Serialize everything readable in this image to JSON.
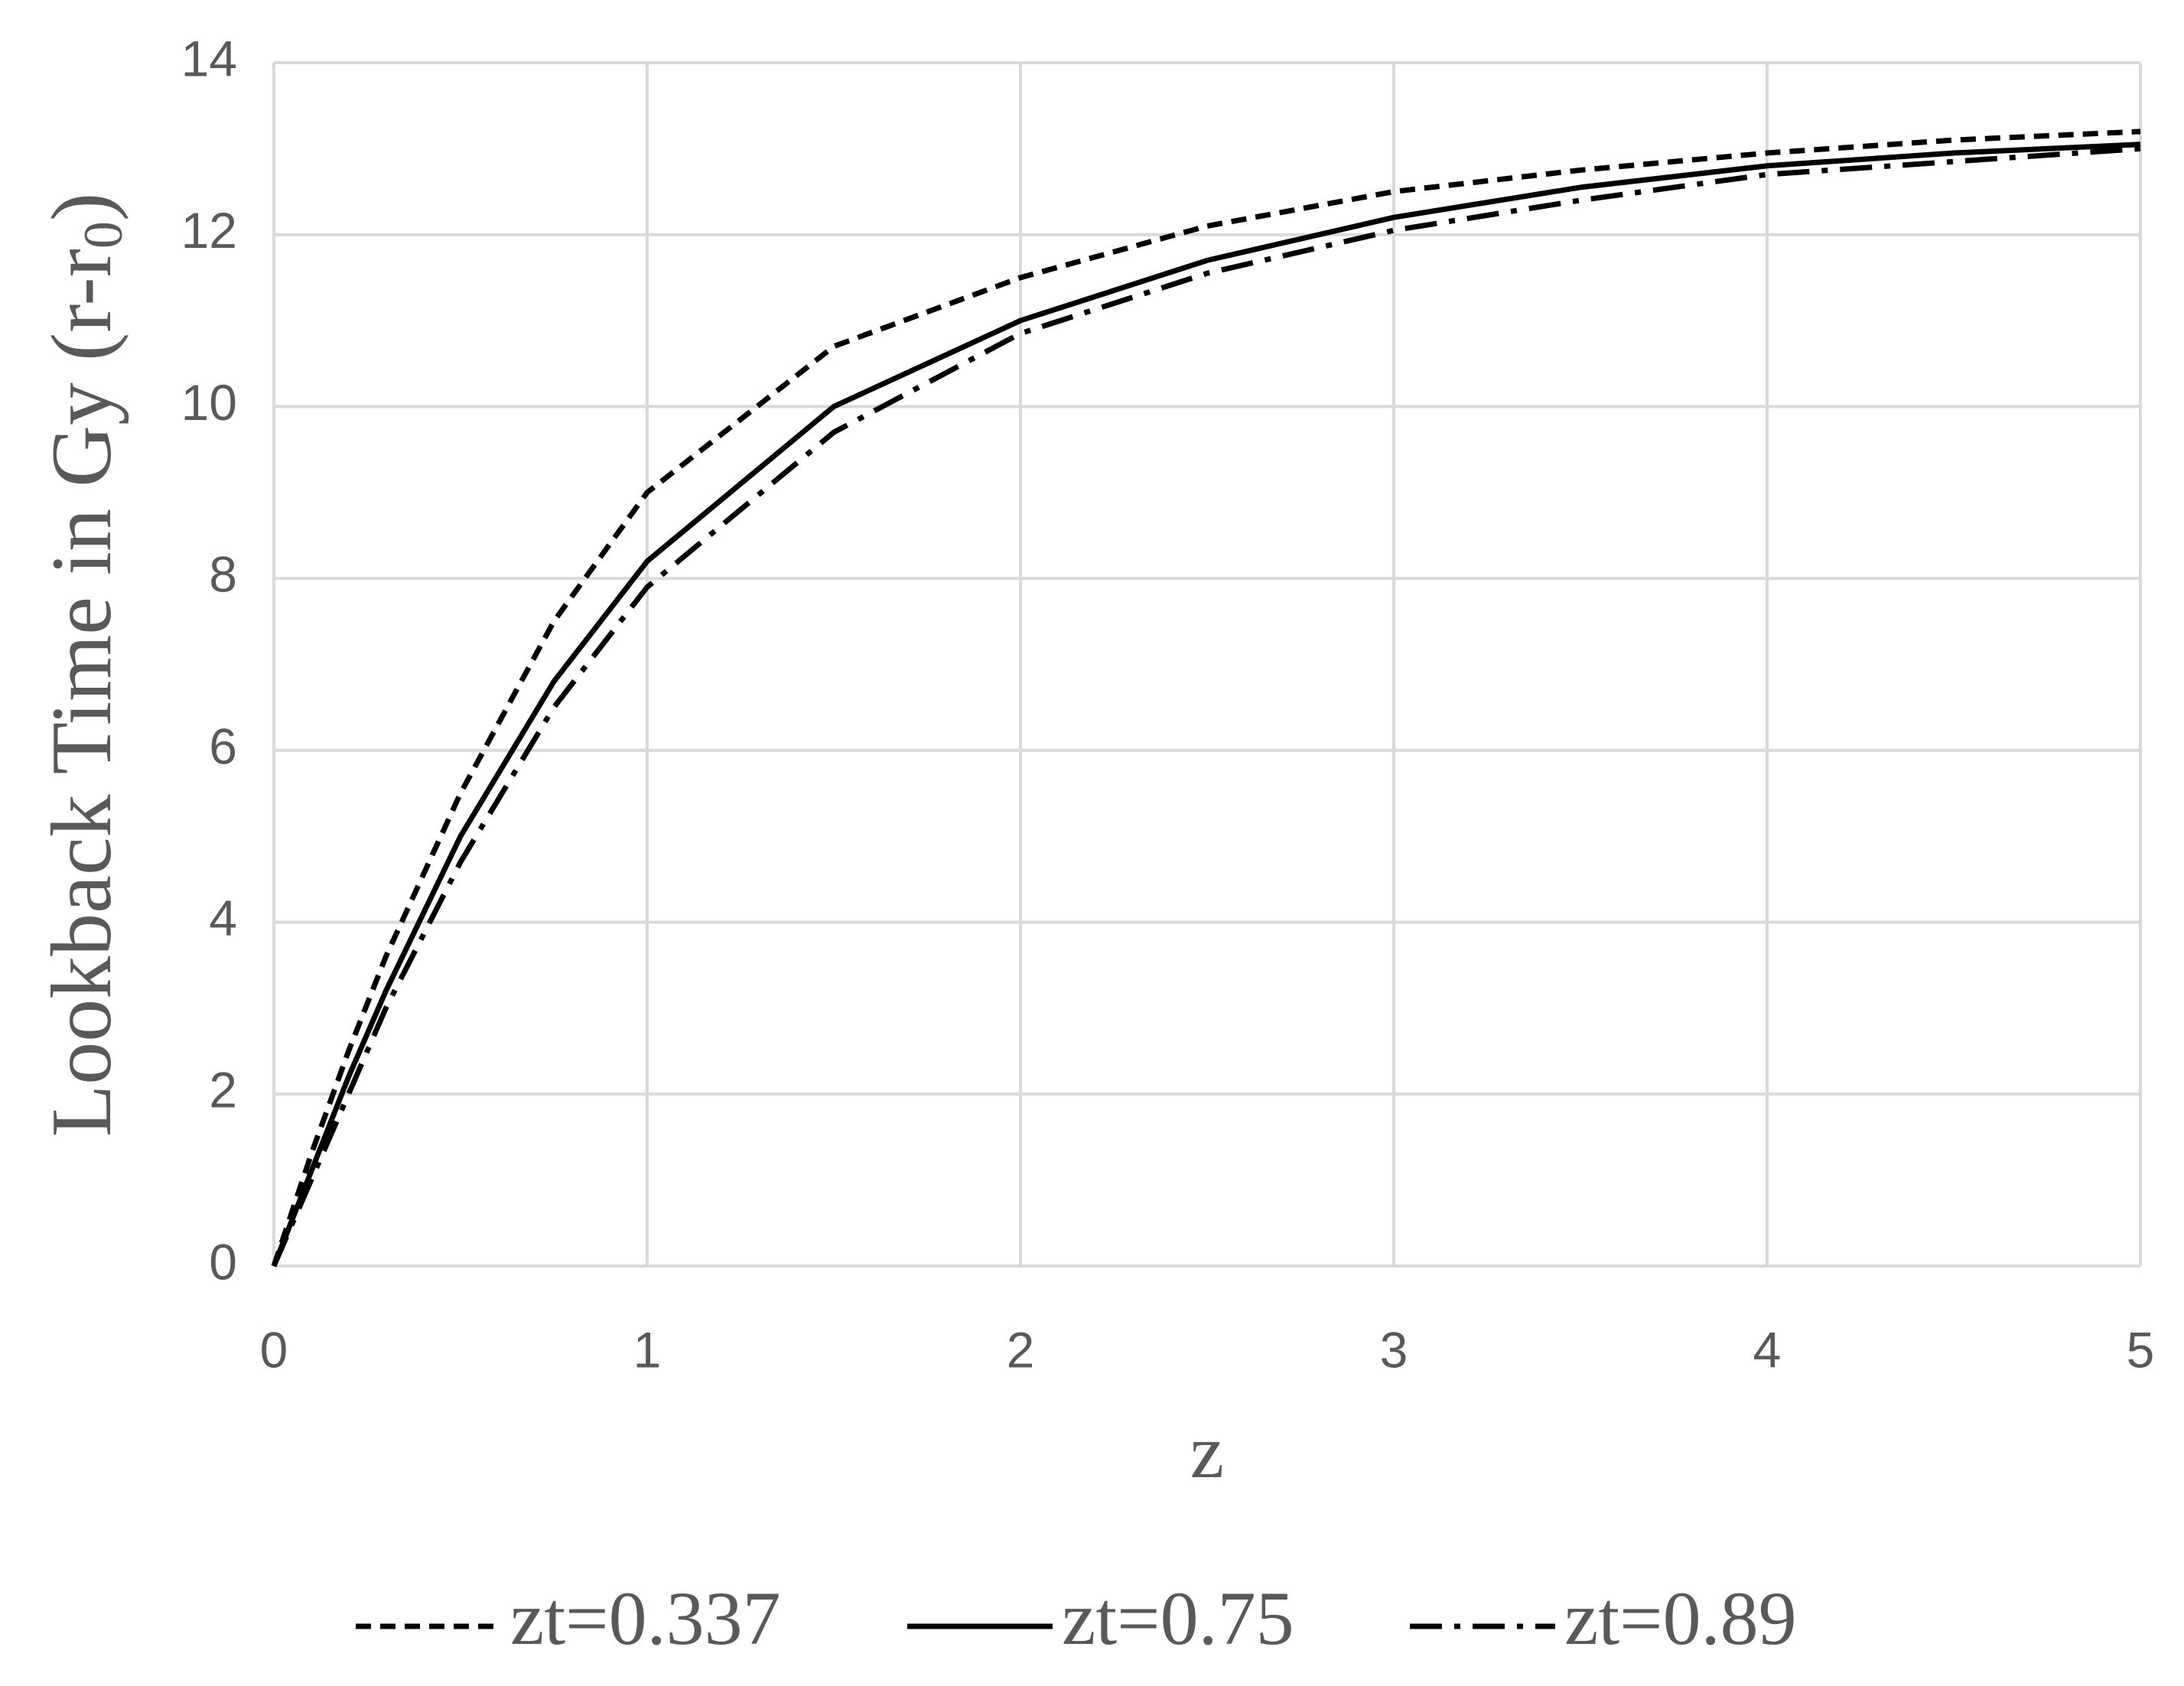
{
  "chart_data": {
    "type": "line",
    "y_label": {
      "text": "Lookback Time in Gy (r-r",
      "subscript": "0",
      "suffix": ")"
    },
    "x_label": "z",
    "x": [
      0,
      0.1,
      0.2,
      0.3,
      0.5,
      0.75,
      1,
      1.5,
      2,
      2.5,
      3,
      3.5,
      4,
      4.5,
      5
    ],
    "series": [
      {
        "name": "zt=0.337",
        "color": "#000000",
        "dash": "dashed",
        "values": [
          0,
          1.3,
          2.5,
          3.6,
          5.5,
          7.5,
          9.0,
          10.7,
          11.5,
          12.1,
          12.5,
          12.75,
          12.95,
          13.1,
          13.2
        ]
      },
      {
        "name": "zt=0.75",
        "color": "#000000",
        "dash": "solid",
        "values": [
          0,
          1.1,
          2.2,
          3.2,
          5.0,
          6.8,
          8.2,
          10.0,
          11.0,
          11.7,
          12.2,
          12.55,
          12.8,
          12.95,
          13.05
        ]
      },
      {
        "name": "zt=0.89",
        "color": "#000000",
        "dash": "dashdot",
        "values": [
          0,
          1.0,
          2.0,
          3.0,
          4.7,
          6.5,
          7.9,
          9.7,
          10.85,
          11.55,
          12.05,
          12.4,
          12.7,
          12.85,
          13.0
        ]
      }
    ],
    "xlim": [
      0,
      5
    ],
    "xticks": [
      0,
      1,
      2,
      3,
      4,
      5
    ],
    "ylim": [
      0,
      14
    ],
    "yticks": [
      0,
      2,
      4,
      6,
      8,
      10,
      12,
      14
    ],
    "grid": true,
    "legend": "bottom"
  }
}
